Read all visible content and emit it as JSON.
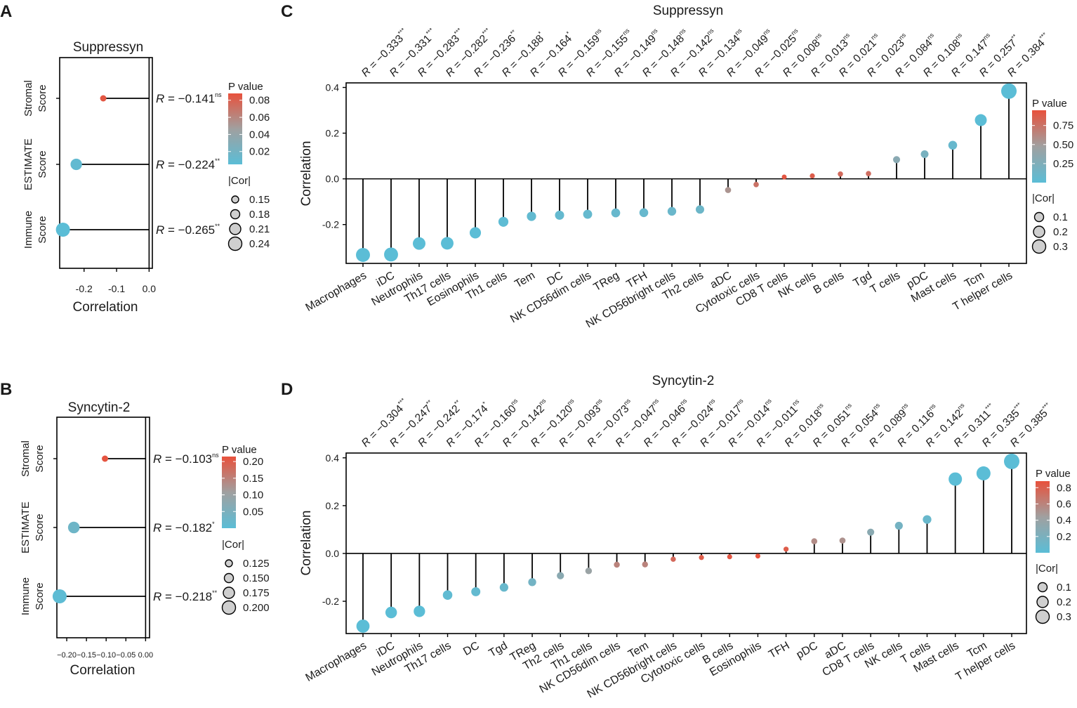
{
  "colors": {
    "low": "#5bbdd6",
    "mid": "#a0a0a0",
    "high": "#e8513c"
  },
  "chart_data": [
    {
      "id": "A",
      "type": "lollipop",
      "orientation": "horizontal",
      "panel_label": "A",
      "title": "Suppressyn",
      "xlabel": "Correlation",
      "ylabel": "",
      "xlim": [
        -0.275,
        0.01
      ],
      "xticks": [
        -0.2,
        -0.1,
        0.0
      ],
      "xtick_labels": [
        "-0.2",
        "-0.1",
        "0.0"
      ],
      "categories": [
        {
          "line1": "Stromal",
          "line2": "Score"
        },
        {
          "line1": "ESTIMATE",
          "line2": "Score"
        },
        {
          "line1": "Immune",
          "line2": "Score"
        }
      ],
      "values": [
        -0.141,
        -0.224,
        -0.265
      ],
      "pvalues": [
        0.085,
        0.009,
        0.001
      ],
      "r_text": [
        "−0.141",
        "−0.224",
        "−0.265"
      ],
      "sig": [
        "ns",
        "**",
        "**"
      ],
      "r_prefix": "R",
      "legend": {
        "pvalue_title": "P value",
        "pvalue_ticks": [
          0.08,
          0.06,
          0.04,
          0.02
        ],
        "pvalue_labels": [
          "0.08",
          "0.06",
          "0.04",
          "0.02"
        ],
        "pvalue_range": [
          0.005,
          0.088
        ],
        "size_title": "|Cor|",
        "size_values": [
          0.15,
          0.18,
          0.21,
          0.24
        ],
        "size_labels": [
          "0.15",
          "0.18",
          "0.21",
          "0.24"
        ]
      }
    },
    {
      "id": "B",
      "type": "lollipop",
      "orientation": "horizontal",
      "panel_label": "B",
      "title": "Syncytin-2",
      "xlabel": "Correlation",
      "ylabel": "",
      "xlim": [
        -0.225,
        0.01
      ],
      "xticks": [
        -0.2,
        -0.15,
        -0.1,
        -0.05,
        0.0
      ],
      "xtick_labels": [
        "−0.20",
        "−0.15",
        "−0.10",
        "−0.05",
        "0.00"
      ],
      "categories": [
        {
          "line1": "Stromal",
          "line2": "Score"
        },
        {
          "line1": "ESTIMATE",
          "line2": "Score"
        },
        {
          "line1": "Immune",
          "line2": "Score"
        }
      ],
      "values": [
        -0.103,
        -0.182,
        -0.218
      ],
      "pvalues": [
        0.21,
        0.03,
        0.004
      ],
      "r_text": [
        "−0.103",
        "−0.182",
        "−0.218"
      ],
      "sig": [
        "ns",
        "*",
        "**"
      ],
      "r_prefix": "R",
      "legend": {
        "pvalue_title": "P value",
        "pvalue_ticks": [
          0.2,
          0.15,
          0.1,
          0.05
        ],
        "pvalue_labels": [
          "0.20",
          "0.15",
          "0.10",
          "0.05"
        ],
        "pvalue_range": [
          0.0,
          0.215
        ],
        "size_title": "|Cor|",
        "size_values": [
          0.125,
          0.15,
          0.175,
          0.2
        ],
        "size_labels": [
          "0.125",
          "0.150",
          "0.175",
          "0.200"
        ]
      }
    },
    {
      "id": "C",
      "type": "lollipop",
      "orientation": "vertical",
      "panel_label": "C",
      "title": "Suppressyn",
      "xlabel": "",
      "ylabel": "Correlation",
      "ylim": [
        -0.37,
        0.42
      ],
      "yticks": [
        -0.2,
        0.0,
        0.2,
        0.4
      ],
      "ytick_labels": [
        "-0.2",
        "0.0",
        "0.2",
        "0.4"
      ],
      "categories": [
        "Macrophages",
        "iDC",
        "Neutrophils",
        "Th17 cells",
        "Eosinophils",
        "Th1 cells",
        "Tem",
        "DC",
        "NK CD56dim cells",
        "TReg",
        "TFH",
        "NK CD56bright cells",
        "Th2 cells",
        "aDC",
        "Cytotoxic cells",
        "CD8 T cells",
        "NK cells",
        "B cells",
        "Tgd",
        "T cells",
        "pDC",
        "Mast cells",
        "Tcm",
        "T helper cells"
      ],
      "values": [
        -0.333,
        -0.331,
        -0.283,
        -0.282,
        -0.236,
        -0.188,
        -0.164,
        -0.159,
        -0.155,
        -0.149,
        -0.148,
        -0.142,
        -0.134,
        -0.049,
        -0.025,
        0.008,
        0.013,
        0.021,
        0.023,
        0.084,
        0.108,
        0.147,
        0.257,
        0.384
      ],
      "pvalues": [
        0.0,
        0.0,
        0.0,
        0.0,
        0.001,
        0.02,
        0.05,
        0.06,
        0.07,
        0.08,
        0.08,
        0.1,
        0.12,
        0.55,
        0.75,
        0.92,
        0.88,
        0.8,
        0.78,
        0.32,
        0.2,
        0.08,
        0.002,
        0.0
      ],
      "r_text": [
        "−0.333",
        "−0.331",
        "−0.283",
        "−0.282",
        "−0.236",
        "−0.188",
        "−0.164",
        "−0.159",
        "−0.155",
        "−0.149",
        "−0.148",
        "−0.142",
        "−0.134",
        "−0.049",
        "−0.025",
        "0.008",
        "0.013",
        "0.021",
        "0.023",
        "0.084",
        "0.108",
        "0.147",
        "0.257",
        "0.384"
      ],
      "sig": [
        "***",
        "***",
        "***",
        "***",
        "**",
        "*",
        "*",
        "ns",
        "ns",
        "ns",
        "ns",
        "ns",
        "ns",
        "ns",
        "ns",
        "ns",
        "ns",
        "ns",
        "ns",
        "ns",
        "ns",
        "ns",
        "**",
        "***"
      ],
      "r_prefix": "R",
      "legend": {
        "pvalue_title": "P value",
        "pvalue_ticks": [
          0.75,
          0.5,
          0.25
        ],
        "pvalue_labels": [
          "0.75",
          "0.50",
          "0.25"
        ],
        "pvalue_range": [
          0.0,
          0.95
        ],
        "size_title": "|Cor|",
        "size_values": [
          0.1,
          0.2,
          0.3
        ],
        "size_labels": [
          "0.1",
          "0.2",
          "0.3"
        ]
      }
    },
    {
      "id": "D",
      "type": "lollipop",
      "orientation": "vertical",
      "panel_label": "D",
      "title": "Syncytin-2",
      "xlabel": "",
      "ylabel": "Correlation",
      "ylim": [
        -0.335,
        0.42
      ],
      "yticks": [
        -0.2,
        0.0,
        0.2,
        0.4
      ],
      "ytick_labels": [
        "-0.2",
        "0.0",
        "0.2",
        "0.4"
      ],
      "categories": [
        "Macrophages",
        "iDC",
        "Neutrophils",
        "Th17 cells",
        "DC",
        "Tgd",
        "TReg",
        "Th2 cells",
        "Th1 cells",
        "NK CD56dim cells",
        "Tem",
        "NK CD56bright cells",
        "Cytotoxic cells",
        "B cells",
        "Eosinophils",
        "TFH",
        "pDC",
        "aDC",
        "CD8 T cells",
        "NK cells",
        "T cells",
        "Mast cells",
        "Tcm",
        "T helper cells"
      ],
      "values": [
        -0.304,
        -0.247,
        -0.242,
        -0.174,
        -0.16,
        -0.142,
        -0.12,
        -0.093,
        -0.073,
        -0.047,
        -0.046,
        -0.024,
        -0.017,
        -0.014,
        -0.011,
        0.018,
        0.051,
        0.054,
        0.089,
        0.116,
        0.142,
        0.311,
        0.335,
        0.385
      ],
      "pvalues": [
        0.0,
        0.001,
        0.002,
        0.03,
        0.05,
        0.08,
        0.15,
        0.3,
        0.4,
        0.6,
        0.6,
        0.75,
        0.82,
        0.85,
        0.88,
        0.82,
        0.55,
        0.52,
        0.3,
        0.16,
        0.08,
        0.0,
        0.0,
        0.0
      ],
      "r_text": [
        "−0.304",
        "−0.247",
        "−0.242",
        "−0.174",
        "−0.160",
        "−0.142",
        "−0.120",
        "−0.093",
        "−0.073",
        "−0.047",
        "−0.046",
        "−0.024",
        "−0.017",
        "−0.014",
        "−0.011",
        "0.018",
        "0.051",
        "0.054",
        "0.089",
        "0.116",
        "0.142",
        "0.311",
        "0.335",
        "0.385"
      ],
      "sig": [
        "***",
        "**",
        "**",
        "*",
        "ns",
        "ns",
        "ns",
        "ns",
        "ns",
        "ns",
        "ns",
        "ns",
        "ns",
        "ns",
        "ns",
        "ns",
        "ns",
        "ns",
        "ns",
        "ns",
        "ns",
        "***",
        "***",
        "***"
      ],
      "r_prefix": "R",
      "legend": {
        "pvalue_title": "P value",
        "pvalue_ticks": [
          0.8,
          0.6,
          0.4,
          0.2
        ],
        "pvalue_labels": [
          "0.8",
          "0.6",
          "0.4",
          "0.2"
        ],
        "pvalue_range": [
          0.0,
          0.88
        ],
        "size_title": "|Cor|",
        "size_values": [
          0.1,
          0.2,
          0.3
        ],
        "size_labels": [
          "0.1",
          "0.2",
          "0.3"
        ]
      }
    }
  ]
}
